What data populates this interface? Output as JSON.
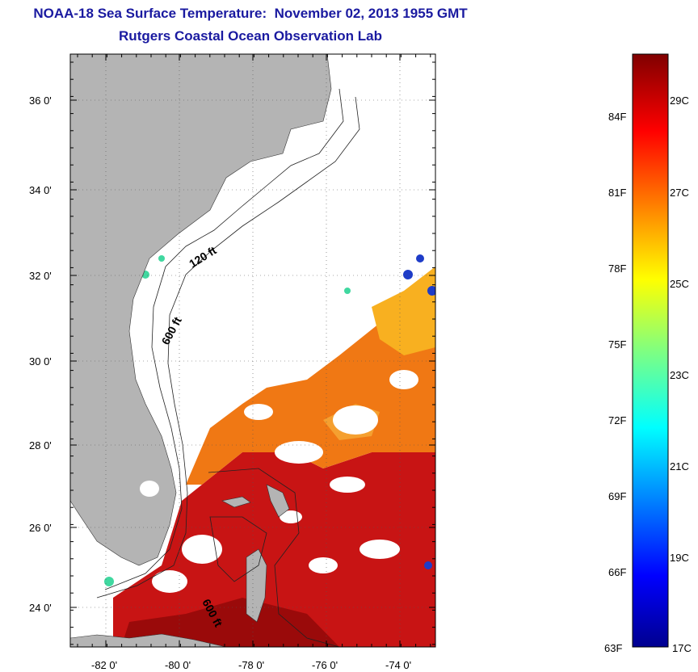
{
  "title": "NOAA-18 Sea Surface Temperature:  November 02, 2013 1955 GMT",
  "subtitle": "Rutgers Coastal Ocean Observation Lab",
  "latitude_labels": [
    "36 0'",
    "34 0'",
    "32 0'",
    "30 0'",
    "28 0'",
    "26 0'",
    "24 0'"
  ],
  "longitude_labels": [
    "-82 0'",
    "-80 0'",
    "-78 0'",
    "-76 0'",
    "-74 0'"
  ],
  "contour_labels": {
    "shelf_120": "120 ft",
    "shelf_600": "600 ft",
    "bahamas_600": "600 ft"
  },
  "colorbar": {
    "fahrenheit_labels": [
      "84F",
      "81F",
      "78F",
      "75F",
      "72F",
      "69F",
      "66F",
      "63F"
    ],
    "celsius_labels": [
      "29C",
      "27C",
      "25C",
      "23C",
      "21C",
      "19C",
      "17C"
    ],
    "min_f": "63F",
    "max_c_bottom": "17C"
  },
  "colors": {
    "title": "#1a1aa0",
    "land": "#b4b4b4",
    "warm": "#c81414",
    "orange": "#f07814",
    "cold": "#0000a0"
  }
}
